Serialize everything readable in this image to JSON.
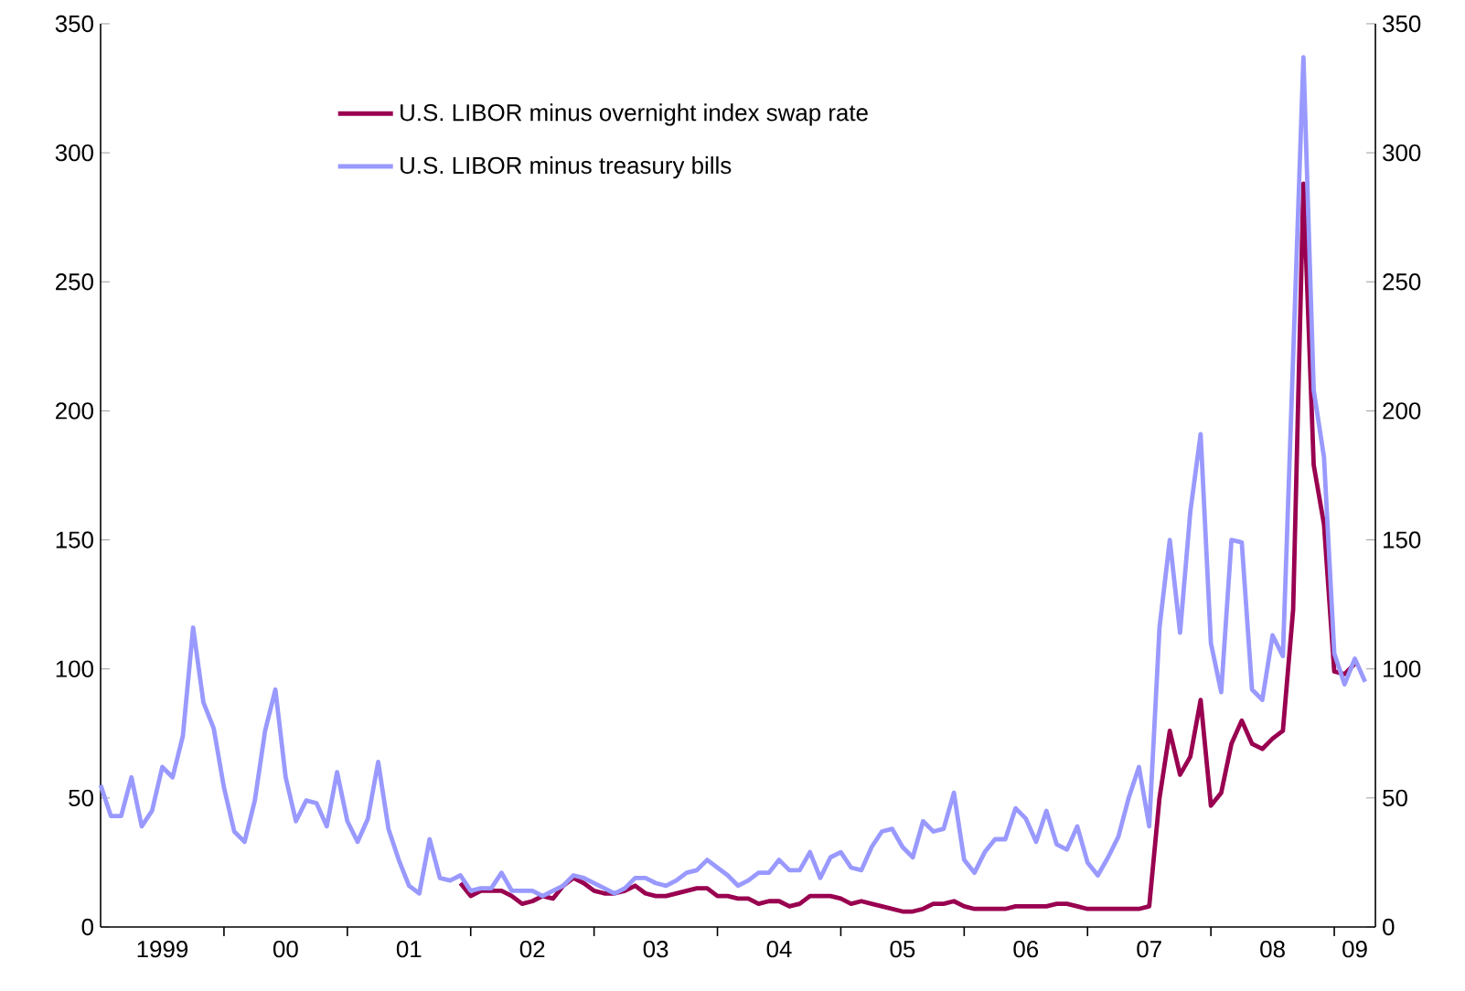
{
  "chart_data": {
    "type": "line",
    "legend": "top",
    "line_style": "solid",
    "xlim": [
      "1999-01",
      "2009-05"
    ],
    "xticks": [
      {
        "value": "1999-07",
        "label": "1999"
      },
      {
        "value": "2000-07",
        "label": "00"
      },
      {
        "value": "2001-07",
        "label": "01"
      },
      {
        "value": "2002-07",
        "label": "02"
      },
      {
        "value": "2003-07",
        "label": "03"
      },
      {
        "value": "2004-07",
        "label": "04"
      },
      {
        "value": "2005-07",
        "label": "05"
      },
      {
        "value": "2006-07",
        "label": "06"
      },
      {
        "value": "2007-07",
        "label": "07"
      },
      {
        "value": "2008-07",
        "label": "08"
      },
      {
        "value": "2009-03",
        "label": "09"
      },
      {
        "value": "2000-01",
        "label": null
      },
      {
        "value": "2001-01",
        "label": null
      },
      {
        "value": "2002-01",
        "label": null
      },
      {
        "value": "2003-01",
        "label": null
      },
      {
        "value": "2004-01",
        "label": null
      },
      {
        "value": "2005-01",
        "label": null
      },
      {
        "value": "2006-01",
        "label": null
      },
      {
        "value": "2007-01",
        "label": null
      },
      {
        "value": "2008-01",
        "label": null
      },
      {
        "value": "2009-01",
        "label": null
      }
    ],
    "ylim": [
      0,
      350
    ],
    "yticks": [
      0,
      50,
      100,
      150,
      200,
      250,
      300,
      350
    ],
    "y2lim": [
      0,
      350
    ],
    "y2ticks": [
      0,
      50,
      100,
      150,
      200,
      250,
      300,
      350
    ],
    "series": [
      {
        "name": "U.S. LIBOR minus overnight index swap rate",
        "color": "#990050",
        "x": [
          "2001-12",
          "2002-01",
          "2002-02",
          "2002-03",
          "2002-04",
          "2002-05",
          "2002-06",
          "2002-07",
          "2002-08",
          "2002-09",
          "2002-10",
          "2002-11",
          "2002-12",
          "2003-01",
          "2003-02",
          "2003-03",
          "2003-04",
          "2003-05",
          "2003-06",
          "2003-07",
          "2003-08",
          "2003-09",
          "2003-10",
          "2003-11",
          "2003-12",
          "2004-01",
          "2004-02",
          "2004-03",
          "2004-04",
          "2004-05",
          "2004-06",
          "2004-07",
          "2004-08",
          "2004-09",
          "2004-10",
          "2004-11",
          "2004-12",
          "2005-01",
          "2005-02",
          "2005-03",
          "2005-04",
          "2005-05",
          "2005-06",
          "2005-07",
          "2005-08",
          "2005-09",
          "2005-10",
          "2005-11",
          "2005-12",
          "2006-01",
          "2006-02",
          "2006-03",
          "2006-04",
          "2006-05",
          "2006-06",
          "2006-07",
          "2006-08",
          "2006-09",
          "2006-10",
          "2006-11",
          "2006-12",
          "2007-01",
          "2007-02",
          "2007-03",
          "2007-04",
          "2007-05",
          "2007-06",
          "2007-07",
          "2007-08",
          "2007-09",
          "2007-10",
          "2007-11",
          "2007-12",
          "2008-01",
          "2008-02",
          "2008-03",
          "2008-04",
          "2008-05",
          "2008-06",
          "2008-07",
          "2008-08",
          "2008-09",
          "2008-10",
          "2008-11",
          "2008-12",
          "2009-01",
          "2009-02",
          "2009-03"
        ],
        "values": [
          17,
          12,
          14,
          14,
          14,
          12,
          9,
          10,
          12,
          11,
          16,
          19,
          17,
          14,
          13,
          13,
          14,
          16,
          13,
          12,
          12,
          13,
          14,
          15,
          15,
          12,
          12,
          11,
          11,
          9,
          10,
          10,
          8,
          9,
          12,
          12,
          12,
          11,
          9,
          10,
          9,
          8,
          7,
          6,
          6,
          7,
          9,
          9,
          10,
          8,
          7,
          7,
          7,
          7,
          8,
          8,
          8,
          8,
          9,
          9,
          8,
          7,
          7,
          7,
          7,
          7,
          7,
          8,
          50,
          76,
          59,
          66,
          88,
          47,
          52,
          71,
          80,
          71,
          69,
          73,
          76,
          123,
          288,
          179,
          156,
          99,
          98,
          102
        ]
      },
      {
        "name": "U.S. LIBOR minus treasury bills",
        "color": "#9999ff",
        "x": [
          "1999-01",
          "1999-02",
          "1999-03",
          "1999-04",
          "1999-05",
          "1999-06",
          "1999-07",
          "1999-08",
          "1999-09",
          "1999-10",
          "1999-11",
          "1999-12",
          "2000-01",
          "2000-02",
          "2000-03",
          "2000-04",
          "2000-05",
          "2000-06",
          "2000-07",
          "2000-08",
          "2000-09",
          "2000-10",
          "2000-11",
          "2000-12",
          "2001-01",
          "2001-02",
          "2001-03",
          "2001-04",
          "2001-05",
          "2001-06",
          "2001-07",
          "2001-08",
          "2001-09",
          "2001-10",
          "2001-11",
          "2001-12",
          "2002-01",
          "2002-02",
          "2002-03",
          "2002-04",
          "2002-05",
          "2002-06",
          "2002-07",
          "2002-08",
          "2002-09",
          "2002-10",
          "2002-11",
          "2002-12",
          "2003-01",
          "2003-02",
          "2003-03",
          "2003-04",
          "2003-05",
          "2003-06",
          "2003-07",
          "2003-08",
          "2003-09",
          "2003-10",
          "2003-11",
          "2003-12",
          "2004-01",
          "2004-02",
          "2004-03",
          "2004-04",
          "2004-05",
          "2004-06",
          "2004-07",
          "2004-08",
          "2004-09",
          "2004-10",
          "2004-11",
          "2004-12",
          "2005-01",
          "2005-02",
          "2005-03",
          "2005-04",
          "2005-05",
          "2005-06",
          "2005-07",
          "2005-08",
          "2005-09",
          "2005-10",
          "2005-11",
          "2005-12",
          "2006-01",
          "2006-02",
          "2006-03",
          "2006-04",
          "2006-05",
          "2006-06",
          "2006-07",
          "2006-08",
          "2006-09",
          "2006-10",
          "2006-11",
          "2006-12",
          "2007-01",
          "2007-02",
          "2007-03",
          "2007-04",
          "2007-05",
          "2007-06",
          "2007-07",
          "2007-08",
          "2007-09",
          "2007-10",
          "2007-11",
          "2007-12",
          "2008-01",
          "2008-02",
          "2008-03",
          "2008-04",
          "2008-05",
          "2008-06",
          "2008-07",
          "2008-08",
          "2008-10",
          "2008-11",
          "2008-12",
          "2009-01",
          "2009-02",
          "2009-03",
          "2009-04"
        ],
        "values": [
          55,
          43,
          43,
          58,
          39,
          45,
          62,
          58,
          74,
          116,
          87,
          77,
          54,
          37,
          33,
          49,
          76,
          92,
          58,
          41,
          49,
          48,
          39,
          60,
          41,
          33,
          42,
          64,
          38,
          26,
          16,
          13,
          34,
          19,
          18,
          20,
          14,
          15,
          15,
          21,
          14,
          14,
          14,
          12,
          14,
          16,
          20,
          19,
          17,
          15,
          13,
          15,
          19,
          19,
          17,
          16,
          18,
          21,
          22,
          26,
          23,
          20,
          16,
          18,
          21,
          21,
          26,
          22,
          22,
          29,
          19,
          27,
          29,
          23,
          22,
          31,
          37,
          38,
          31,
          27,
          41,
          37,
          38,
          52,
          26,
          21,
          29,
          34,
          34,
          46,
          42,
          33,
          45,
          32,
          30,
          39,
          25,
          20,
          27,
          35,
          50,
          62,
          39,
          116,
          150,
          114,
          161,
          191,
          110,
          91,
          150,
          149,
          92,
          88,
          113,
          105,
          337,
          208,
          182,
          106,
          94,
          104,
          95
        ]
      }
    ]
  }
}
